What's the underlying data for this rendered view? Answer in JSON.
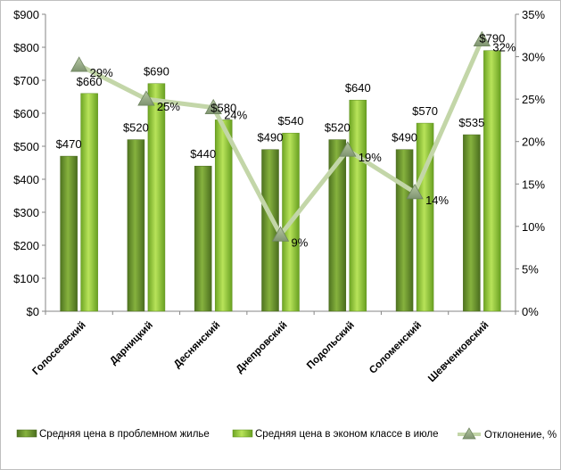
{
  "chart_data": {
    "type": "bar",
    "categories": [
      "Голосеевский",
      "Дарницкий",
      "Деснянский",
      "Днепровский",
      "Подольский",
      "Соломенский",
      "Шевченковский"
    ],
    "series": [
      {
        "name": "Средняя цена в проблемном жилье",
        "type": "bar",
        "axis": "left",
        "values": [
          470,
          520,
          440,
          490,
          520,
          490,
          535
        ],
        "labels": [
          "$470",
          "$520",
          "$440",
          "$490",
          "$520",
          "$490",
          "$535"
        ],
        "color": "#6f9a2c"
      },
      {
        "name": "Средняя цена в эконом классе в июле",
        "type": "bar",
        "axis": "left",
        "values": [
          660,
          690,
          580,
          540,
          640,
          570,
          790
        ],
        "labels": [
          "$660",
          "$690",
          "$580",
          "$540",
          "$640",
          "$570",
          "$790"
        ],
        "color": "#9acd32"
      },
      {
        "name": "Отклонение, %",
        "type": "line",
        "axis": "right",
        "values": [
          29,
          25,
          24,
          9,
          19,
          14,
          32
        ],
        "labels": [
          "29%",
          "25%",
          "24%",
          "9%",
          "19%",
          "14%",
          "32%"
        ],
        "color": "#c3d6a8",
        "marker": "triangle"
      }
    ],
    "y_left": {
      "ylim": [
        0,
        900
      ],
      "ticks": [
        "$0",
        "$100",
        "$200",
        "$300",
        "$400",
        "$500",
        "$600",
        "$700",
        "$800",
        "$900"
      ]
    },
    "y_right": {
      "ylim": [
        0,
        35
      ],
      "ticks": [
        "0%",
        "5%",
        "10%",
        "15%",
        "20%",
        "25%",
        "30%",
        "35%"
      ]
    },
    "title": "",
    "xlabel": "",
    "ylabel": "",
    "grid": false,
    "legend_position": "bottom"
  }
}
